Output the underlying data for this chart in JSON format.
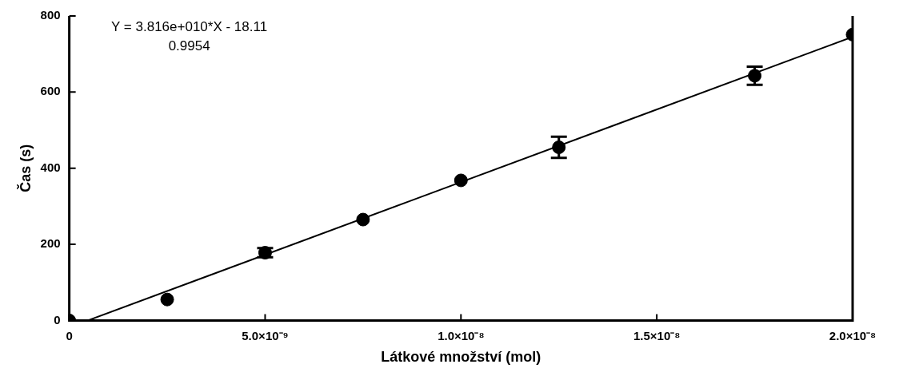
{
  "chart_data": {
    "type": "scatter",
    "xlabel": "Látkové množství (mol)",
    "ylabel": "Čas (s)",
    "annotations": [
      "Y = 3.816e+010*X - 18.11",
      "0.9954"
    ],
    "xlim": [
      0,
      2e-08
    ],
    "xticks": [
      0,
      {
        "value": 5e-09,
        "label": "5.0×10⁻⁹"
      },
      {
        "value": 1e-08,
        "label": "1.0×10⁻⁸"
      },
      {
        "value": 1.5e-08,
        "label": "1.5×10⁻⁸"
      },
      {
        "value": 2e-08,
        "label": "2.0×10⁻⁸"
      }
    ],
    "ylim": [
      0,
      800
    ],
    "yticks": [
      0,
      200,
      400,
      600,
      800
    ],
    "series": [
      {
        "color": "#000000",
        "marker": "circle",
        "x": [
          0,
          2.5e-09,
          5e-09,
          7.5e-09,
          1e-08,
          1.25e-08,
          1.75e-08,
          2e-08
        ],
        "values": [
          0,
          55,
          178,
          265,
          368,
          455,
          643,
          751
        ],
        "errors": [
          null,
          null,
          12,
          null,
          null,
          28,
          24,
          null
        ]
      },
      {
        "type": "line",
        "color": "#000000",
        "marker": "none",
        "x": [
          4.746e-10,
          2e-08
        ],
        "values": [
          0,
          745
        ]
      }
    ]
  }
}
